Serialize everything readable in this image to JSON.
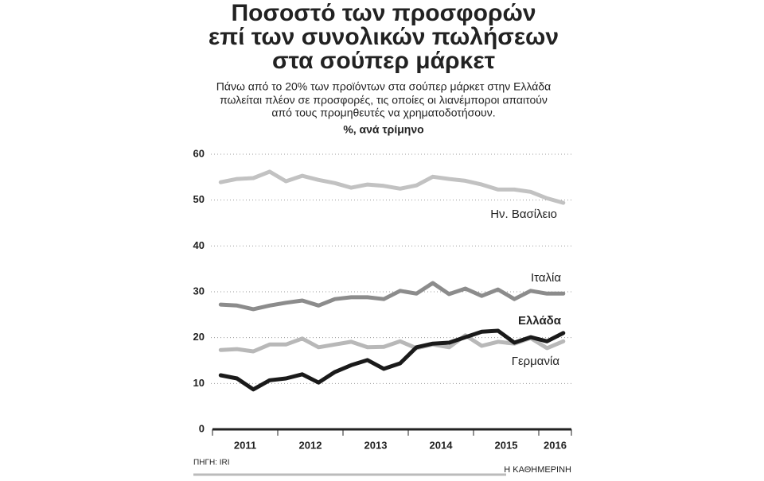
{
  "chart_data": {
    "type": "line",
    "title": [
      "Ποσοστό των προσφορών",
      "επί των συνολικών πωλήσεων",
      "στα σούπερ μάρκετ"
    ],
    "subtitle": [
      "Πάνω από το 20% των προϊόντων στα σούπερ μάρκετ στην Ελλάδα",
      "πωλείται πλέον σε προσφορές, τις οποίες οι λιανέμποροι απαιτούν",
      "από τους προμηθευτές να χρηματοδοτήσουν."
    ],
    "y_label": "%, ανά τρίμηνο",
    "x": [
      2011.125,
      2011.375,
      2011.625,
      2011.875,
      2012.125,
      2012.375,
      2012.625,
      2012.875,
      2013.125,
      2013.375,
      2013.625,
      2013.875,
      2014.125,
      2014.375,
      2014.625,
      2014.875,
      2015.125,
      2015.375,
      2015.625,
      2015.875,
      2016.125,
      2016.375
    ],
    "xlim": [
      2011,
      2016.5
    ],
    "xticks": [
      {
        "value": 2011.5,
        "label": "2011"
      },
      {
        "value": 2012.5,
        "label": "2012"
      },
      {
        "value": 2013.5,
        "label": "2013"
      },
      {
        "value": 2014.5,
        "label": "2014"
      },
      {
        "value": 2015.5,
        "label": "2015"
      },
      {
        "value": 2016.25,
        "label": "2016"
      }
    ],
    "xminorticks": [
      2011,
      2012,
      2013,
      2014,
      2015,
      2016,
      2016.5
    ],
    "ylim": [
      0,
      60
    ],
    "yticks": [
      0,
      10,
      20,
      30,
      40,
      50,
      60
    ],
    "grid": true,
    "series": [
      {
        "name": "Ην. Βασίλειο",
        "color": "#c2c2c2",
        "values": [
          53.9,
          54.6,
          54.8,
          56.2,
          54.1,
          55.3,
          54.4,
          53.7,
          52.7,
          53.4,
          53.1,
          52.5,
          53.2,
          55.1,
          54.6,
          54.2,
          53.4,
          52.3,
          52.3,
          51.8,
          50.4,
          49.4
        ]
      },
      {
        "name": "Ιταλία",
        "color": "#8c8c8c",
        "values": [
          27.2,
          27.0,
          26.2,
          27.0,
          27.6,
          28.1,
          27.0,
          28.4,
          28.8,
          28.8,
          28.4,
          30.2,
          29.6,
          31.9,
          29.5,
          30.7,
          29.1,
          30.5,
          28.4,
          30.2,
          29.6,
          29.6
        ]
      },
      {
        "name": "Γερμανία",
        "color": "#b8b8b8",
        "values": [
          17.3,
          17.5,
          17.0,
          18.5,
          18.5,
          19.8,
          17.9,
          18.5,
          19.1,
          17.9,
          18.0,
          19.2,
          17.7,
          18.5,
          17.9,
          20.5,
          18.2,
          19.1,
          18.7,
          19.9,
          17.7,
          19.2
        ]
      },
      {
        "name": "Ελλάδα",
        "color": "#1a1a1a",
        "values": [
          11.8,
          11.1,
          8.7,
          10.7,
          11.1,
          12.0,
          10.2,
          12.5,
          14.0,
          15.1,
          13.2,
          14.4,
          17.9,
          18.7,
          18.9,
          20.1,
          21.3,
          21.5,
          18.9,
          20.1,
          19.2,
          21.0
        ]
      }
    ],
    "source": "ΠΗΓΗ: IRI",
    "publisher": "Η ΚΑΘΗΜΕΡΙΝΗ"
  }
}
